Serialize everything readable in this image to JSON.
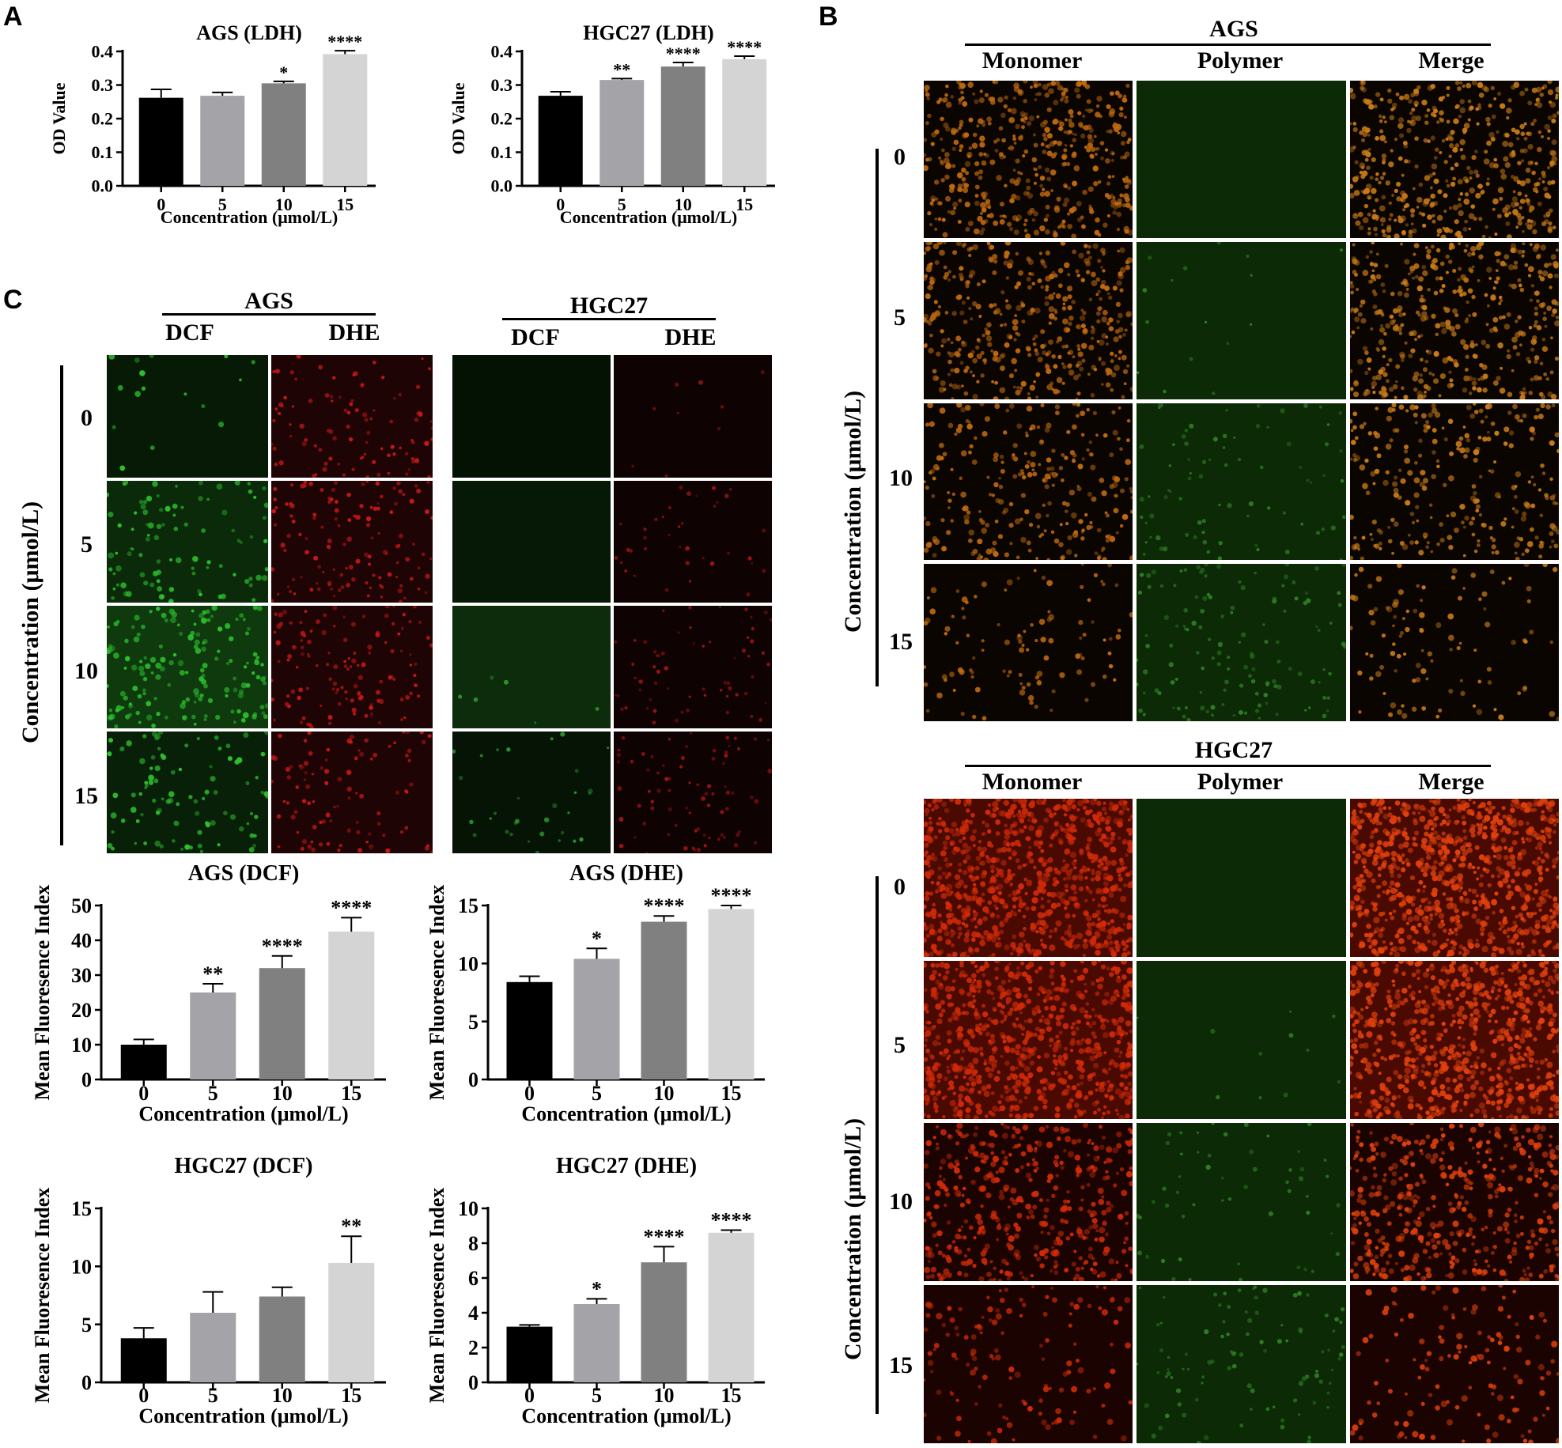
{
  "panels": {
    "A": "A",
    "B": "B",
    "C": "C"
  },
  "panelB": {
    "ags_title": "AGS",
    "hgc_title": "HGC27",
    "col_headers": [
      "Monomer",
      "Polymer",
      "Merge"
    ],
    "y_label": "Concentration (μmol/L)",
    "rows": [
      "0",
      "5",
      "10",
      "15"
    ]
  },
  "panelC": {
    "ags_title": "AGS",
    "hgc_title": "HGC27",
    "col_headers": [
      "DCF",
      "DHE"
    ],
    "y_label": "Concentration (μmol/L)",
    "rows": [
      "0",
      "5",
      "10",
      "15"
    ]
  },
  "colors": {
    "bar0": "#000000",
    "bar5": "#a3a3a8",
    "bar10": "#808080",
    "bar15": "#d4d4d4",
    "monomer_ags": "#c06a10",
    "monomer_hgc": "#d02a08",
    "polymer": "#0c2a06",
    "dcf": "#1e8a1e",
    "dhe": "#8a0c0c"
  },
  "chart_data": [
    {
      "id": "a-ags-ldh",
      "type": "bar",
      "title": "AGS (LDH)",
      "xlabel": "Concentration (μmol/L)",
      "ylabel": "OD Value",
      "categories": [
        "0",
        "5",
        "10",
        "15"
      ],
      "values": [
        0.262,
        0.268,
        0.305,
        0.392
      ],
      "errors": [
        0.025,
        0.01,
        0.006,
        0.01
      ],
      "significance": [
        "",
        "",
        "*",
        "****"
      ],
      "ylim": [
        0,
        0.4
      ],
      "yticks": [
        "0.0",
        "0.1",
        "0.2",
        "0.3",
        "0.4"
      ]
    },
    {
      "id": "a-hgc-ldh",
      "type": "bar",
      "title": "HGC27 (LDH)",
      "xlabel": "Concentration (μmol/L)",
      "ylabel": "OD Value",
      "categories": [
        "0",
        "5",
        "10",
        "15"
      ],
      "values": [
        0.268,
        0.315,
        0.355,
        0.377
      ],
      "errors": [
        0.012,
        0.004,
        0.012,
        0.009
      ],
      "significance": [
        "",
        "**",
        "****",
        "****"
      ],
      "ylim": [
        0,
        0.4
      ],
      "yticks": [
        "0.0",
        "0.1",
        "0.2",
        "0.3",
        "0.4"
      ]
    },
    {
      "id": "c-ags-dcf",
      "type": "bar",
      "title": "AGS (DCF)",
      "xlabel": "Concentration (μmol/L)",
      "ylabel": "Mean Fluoresence Index",
      "categories": [
        "0",
        "5",
        "10",
        "15"
      ],
      "values": [
        10,
        25,
        32,
        42.5
      ],
      "errors": [
        1.5,
        2.5,
        3.5,
        4
      ],
      "significance": [
        "",
        "**",
        "****",
        "****"
      ],
      "ylim": [
        0,
        50
      ],
      "yticks": [
        "0",
        "10",
        "20",
        "30",
        "40",
        "50"
      ]
    },
    {
      "id": "c-ags-dhe",
      "type": "bar",
      "title": "AGS (DHE)",
      "xlabel": "Concentration (μmol/L)",
      "ylabel": "Mean Fluoresence Index",
      "categories": [
        "0",
        "5",
        "10",
        "15"
      ],
      "values": [
        8.4,
        10.4,
        13.6,
        14.7
      ],
      "errors": [
        0.5,
        0.9,
        0.5,
        0.3
      ],
      "significance": [
        "",
        "*",
        "****",
        "****"
      ],
      "ylim": [
        0,
        15
      ],
      "yticks": [
        "0",
        "5",
        "10",
        "15"
      ]
    },
    {
      "id": "c-hgc-dcf",
      "type": "bar",
      "title": "HGC27 (DCF)",
      "xlabel": "Concentration (μmol/L)",
      "ylabel": "Mean Fluoresence Index",
      "categories": [
        "0",
        "5",
        "10",
        "15"
      ],
      "values": [
        3.8,
        6,
        7.4,
        10.3
      ],
      "errors": [
        0.9,
        1.8,
        0.8,
        2.3
      ],
      "significance": [
        "",
        "",
        "",
        "**"
      ],
      "ylim": [
        0,
        15
      ],
      "yticks": [
        "0",
        "5",
        "10",
        "15"
      ]
    },
    {
      "id": "c-hgc-dhe",
      "type": "bar",
      "title": "HGC27 (DHE)",
      "xlabel": "Concentration (μmol/L)",
      "ylabel": "Mean Fluoresence Index",
      "categories": [
        "0",
        "5",
        "10",
        "15"
      ],
      "values": [
        3.2,
        4.5,
        6.9,
        8.6
      ],
      "errors": [
        0.1,
        0.3,
        0.9,
        0.15
      ],
      "significance": [
        "",
        "*",
        "****",
        "****"
      ],
      "ylim": [
        0,
        10
      ],
      "yticks": [
        "0",
        "2",
        "4",
        "6",
        "8",
        "10"
      ]
    }
  ]
}
